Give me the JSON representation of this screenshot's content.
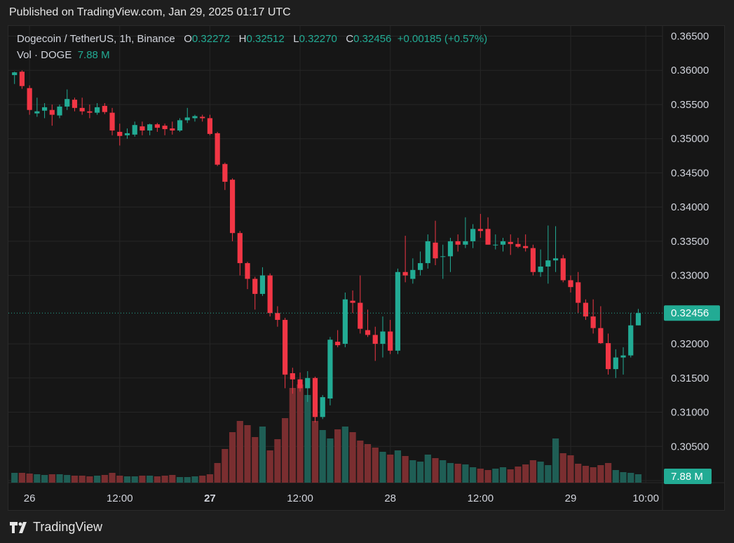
{
  "header": {
    "published": "Published on TradingView.com, Jan 29, 2025 01:17 UTC"
  },
  "legend": {
    "symbol": "Dogecoin / TetherUS, 1h, Binance",
    "o_label": "O",
    "o_value": "0.32272",
    "h_label": "H",
    "h_value": "0.32512",
    "l_label": "L",
    "l_value": "0.32270",
    "c_label": "C",
    "c_value": "0.32456",
    "change": "+0.00185 (+0.57%)",
    "vol_label": "Vol · DOGE",
    "vol_value": "7.88 M"
  },
  "colors": {
    "up": "#22ab94",
    "down": "#f23645",
    "up_vol": "#1f5e55",
    "down_vol": "#7a2e30"
  },
  "brand": {
    "name": "TradingView",
    "icon": "tradingview-logo-icon"
  },
  "chart_data": {
    "type": "candlestick",
    "interval": "1h",
    "grid": true,
    "ylim": [
      0.3,
      0.366
    ],
    "y_ticks": [
      "0.36500",
      "0.36000",
      "0.35500",
      "0.35000",
      "0.34500",
      "0.34000",
      "0.33500",
      "0.33000",
      "0.32000",
      "0.31500",
      "0.31000",
      "0.30500",
      "0.30000"
    ],
    "last_price_label": "0.32456",
    "last_volume_label": "7.88 M",
    "x_ticks": [
      {
        "label": "26",
        "index": 2,
        "bold": false
      },
      {
        "label": "12:00",
        "index": 14,
        "bold": false
      },
      {
        "label": "27",
        "index": 26,
        "bold": true
      },
      {
        "label": "12:00",
        "index": 38,
        "bold": false
      },
      {
        "label": "28",
        "index": 50,
        "bold": false
      },
      {
        "label": "12:00",
        "index": 62,
        "bold": false
      },
      {
        "label": "29",
        "index": 74,
        "bold": false
      },
      {
        "label": "10:00",
        "index": 84,
        "bold": false
      }
    ],
    "candles": [
      [
        0.3593,
        0.3598,
        0.358,
        0.3597
      ],
      [
        0.3598,
        0.36,
        0.3573,
        0.3577
      ],
      [
        0.3574,
        0.3578,
        0.3535,
        0.3542
      ],
      [
        0.3537,
        0.356,
        0.3532,
        0.354
      ],
      [
        0.3541,
        0.3552,
        0.353,
        0.3546
      ],
      [
        0.3542,
        0.355,
        0.3519,
        0.3535
      ],
      [
        0.3534,
        0.355,
        0.353,
        0.3547
      ],
      [
        0.3547,
        0.3572,
        0.3542,
        0.3558
      ],
      [
        0.3557,
        0.356,
        0.354,
        0.3545
      ],
      [
        0.3545,
        0.356,
        0.3535,
        0.354
      ],
      [
        0.354,
        0.355,
        0.353,
        0.3538
      ],
      [
        0.3538,
        0.3552,
        0.3535,
        0.3546
      ],
      [
        0.3548,
        0.3552,
        0.3536,
        0.3539
      ],
      [
        0.3538,
        0.3545,
        0.3505,
        0.3512
      ],
      [
        0.351,
        0.3522,
        0.349,
        0.3504
      ],
      [
        0.3505,
        0.3515,
        0.35,
        0.3508
      ],
      [
        0.3506,
        0.3525,
        0.3503,
        0.352
      ],
      [
        0.3518,
        0.3525,
        0.3505,
        0.3512
      ],
      [
        0.3512,
        0.3522,
        0.3505,
        0.3521
      ],
      [
        0.3521,
        0.3523,
        0.351,
        0.3516
      ],
      [
        0.3519,
        0.3522,
        0.3505,
        0.3514
      ],
      [
        0.3515,
        0.3525,
        0.3506,
        0.3512
      ],
      [
        0.3512,
        0.353,
        0.351,
        0.3527
      ],
      [
        0.3527,
        0.3545,
        0.3523,
        0.3531
      ],
      [
        0.353,
        0.3535,
        0.3525,
        0.3533
      ],
      [
        0.3532,
        0.3535,
        0.3525,
        0.353
      ],
      [
        0.353,
        0.3535,
        0.3505,
        0.3507
      ],
      [
        0.3508,
        0.351,
        0.346,
        0.3462
      ],
      [
        0.3463,
        0.3465,
        0.3425,
        0.3437
      ],
      [
        0.344,
        0.3442,
        0.335,
        0.3362
      ],
      [
        0.3362,
        0.3365,
        0.33,
        0.3318
      ],
      [
        0.3318,
        0.332,
        0.328,
        0.3295
      ],
      [
        0.3295,
        0.3298,
        0.325,
        0.3273
      ],
      [
        0.3273,
        0.3312,
        0.327,
        0.33
      ],
      [
        0.33,
        0.3303,
        0.324,
        0.3245
      ],
      [
        0.3245,
        0.3255,
        0.3225,
        0.3235
      ],
      [
        0.3235,
        0.3238,
        0.3135,
        0.3155
      ],
      [
        0.3157,
        0.3165,
        0.3127,
        0.3148
      ],
      [
        0.3148,
        0.3158,
        0.313,
        0.3135
      ],
      [
        0.3135,
        0.316,
        0.3115,
        0.315
      ],
      [
        0.315,
        0.3152,
        0.3085,
        0.3093
      ],
      [
        0.3093,
        0.3125,
        0.309,
        0.3122
      ],
      [
        0.312,
        0.321,
        0.311,
        0.3206
      ],
      [
        0.3203,
        0.322,
        0.3195,
        0.3198
      ],
      [
        0.32,
        0.3275,
        0.3195,
        0.3265
      ],
      [
        0.3263,
        0.3278,
        0.3245,
        0.326
      ],
      [
        0.326,
        0.33,
        0.3215,
        0.3222
      ],
      [
        0.322,
        0.325,
        0.321,
        0.3213
      ],
      [
        0.3213,
        0.3225,
        0.3175,
        0.32
      ],
      [
        0.32,
        0.324,
        0.318,
        0.3218
      ],
      [
        0.3218,
        0.3235,
        0.3185,
        0.319
      ],
      [
        0.319,
        0.331,
        0.3185,
        0.3305
      ],
      [
        0.3305,
        0.3358,
        0.329,
        0.33
      ],
      [
        0.3295,
        0.3325,
        0.3288,
        0.3308
      ],
      [
        0.3308,
        0.3335,
        0.33,
        0.3318
      ],
      [
        0.3318,
        0.336,
        0.331,
        0.335
      ],
      [
        0.3348,
        0.338,
        0.3315,
        0.3325
      ],
      [
        0.3328,
        0.3345,
        0.3295,
        0.3328
      ],
      [
        0.3328,
        0.3355,
        0.3305,
        0.335
      ],
      [
        0.335,
        0.336,
        0.3335,
        0.3345
      ],
      [
        0.3345,
        0.3385,
        0.334,
        0.335
      ],
      [
        0.335,
        0.3375,
        0.334,
        0.3368
      ],
      [
        0.3368,
        0.339,
        0.3355,
        0.3365
      ],
      [
        0.3368,
        0.3385,
        0.3345,
        0.3345
      ],
      [
        0.3345,
        0.336,
        0.3338,
        0.3345
      ],
      [
        0.3345,
        0.3355,
        0.3335,
        0.335
      ],
      [
        0.3349,
        0.336,
        0.333,
        0.3346
      ],
      [
        0.3346,
        0.3355,
        0.334,
        0.3342
      ],
      [
        0.3343,
        0.336,
        0.3335,
        0.334
      ],
      [
        0.334,
        0.3345,
        0.33,
        0.3305
      ],
      [
        0.3305,
        0.3338,
        0.3298,
        0.3313
      ],
      [
        0.3313,
        0.3373,
        0.3288,
        0.3322
      ],
      [
        0.3322,
        0.3372,
        0.3305,
        0.3325
      ],
      [
        0.3325,
        0.333,
        0.329,
        0.3293
      ],
      [
        0.3293,
        0.33,
        0.3275,
        0.3283
      ],
      [
        0.329,
        0.3305,
        0.3245,
        0.326
      ],
      [
        0.326,
        0.3265,
        0.3235,
        0.324
      ],
      [
        0.324,
        0.3265,
        0.3215,
        0.3223
      ],
      [
        0.3223,
        0.3255,
        0.32,
        0.3201
      ],
      [
        0.3201,
        0.3215,
        0.3155,
        0.3163
      ],
      [
        0.3163,
        0.3192,
        0.315,
        0.318
      ],
      [
        0.318,
        0.3195,
        0.3155,
        0.3183
      ],
      [
        0.3183,
        0.3245,
        0.318,
        0.3227
      ],
      [
        0.3227,
        0.3251,
        0.3227,
        0.3245
      ]
    ],
    "volumes": [
      14,
      14,
      13,
      12,
      11,
      12,
      12,
      11,
      10,
      10,
      9,
      10,
      11,
      14,
      10,
      9,
      9,
      10,
      10,
      9,
      10,
      11,
      8,
      8,
      9,
      10,
      12,
      28,
      48,
      72,
      88,
      82,
      65,
      80,
      46,
      62,
      92,
      135,
      140,
      125,
      88,
      75,
      63,
      76,
      80,
      72,
      60,
      55,
      50,
      44,
      40,
      46,
      38,
      32,
      30,
      40,
      35,
      32,
      28,
      27,
      26,
      22,
      20,
      18,
      20,
      22,
      19,
      23,
      26,
      32,
      30,
      25,
      63,
      42,
      39,
      27,
      24,
      22,
      25,
      28,
      18,
      15,
      14,
      12
    ]
  }
}
